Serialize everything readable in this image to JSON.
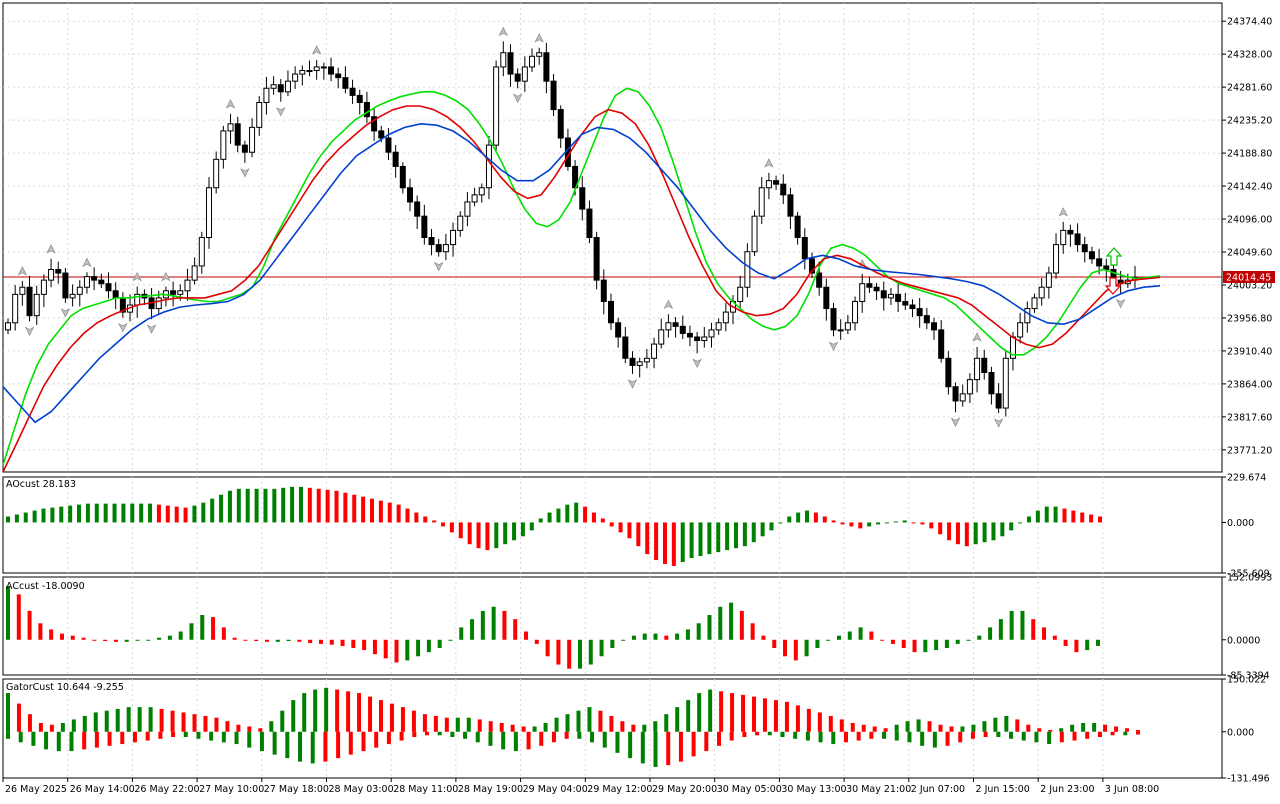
{
  "chart_data": [
    {
      "type": "candlestick",
      "panel": "main",
      "ylim": [
        23740,
        24400
      ],
      "yticks": [
        24374.4,
        24328.0,
        24281.6,
        24235.2,
        24188.8,
        24142.4,
        24096.0,
        24049.6,
        24003.2,
        23956.8,
        23910.4,
        23864.0,
        23817.6,
        23771.2
      ],
      "ytick_labels": [
        "24374.40",
        "24328.00",
        "24281.60",
        "24235.20",
        "24188.80",
        "24142.40",
        "24096.00",
        "24049.60",
        "24003.20",
        "23956.80",
        "23910.40",
        "23864.00",
        "23817.60",
        "23771.20"
      ],
      "current_price": 24014.45,
      "current_price_label": "24014.45",
      "xlabels": [
        "26 May 2025",
        "26 May 14:00",
        "26 May 22:00",
        "27 May 10:00",
        "27 May 18:00",
        "28 May 03:00",
        "28 May 11:00",
        "28 May 19:00",
        "29 May 04:00",
        "29 May 12:00",
        "29 May 20:00",
        "30 May 05:00",
        "30 May 13:00",
        "30 May 21:00",
        "2 Jun 07:00",
        "2 Jun 15:00",
        "2 Jun 23:00",
        "3 Jun 08:00"
      ],
      "candle_close_path": [
        23950,
        23990,
        24000,
        23960,
        23990,
        24010,
        24025,
        24020,
        23985,
        23990,
        24000,
        24015,
        24010,
        24005,
        23995,
        23985,
        23965,
        23975,
        23990,
        23985,
        23970,
        23985,
        23995,
        23990,
        23995,
        24010,
        24030,
        24070,
        24140,
        24180,
        24220,
        24230,
        24200,
        24190,
        24225,
        24260,
        24280,
        24285,
        24275,
        24290,
        24300,
        24305,
        24305,
        24310,
        24310,
        24300,
        24295,
        24280,
        24270,
        24260,
        24240,
        24220,
        24210,
        24190,
        24170,
        24140,
        24120,
        24100,
        24070,
        24060,
        24050,
        24060,
        24080,
        24100,
        24120,
        24130,
        24140,
        24200,
        24310,
        24330,
        24300,
        24290,
        24310,
        24325,
        24330,
        24290,
        24250,
        24210,
        24170,
        24140,
        24110,
        24070,
        24010,
        23980,
        23950,
        23930,
        23900,
        23890,
        23895,
        23900,
        23920,
        23940,
        23950,
        23945,
        23935,
        23930,
        23925,
        23930,
        23940,
        23950,
        23965,
        23980,
        24000,
        24050,
        24100,
        24140,
        24150,
        24145,
        24130,
        24100,
        24070,
        24040,
        24020,
        24000,
        23970,
        23940,
        23940,
        23950,
        23980,
        24005,
        24000,
        23995,
        23985,
        23990,
        23980,
        23975,
        23970,
        23960,
        23950,
        23940,
        23900,
        23860,
        23840,
        23850,
        23870,
        23900,
        23880,
        23850,
        23830,
        23900,
        23930,
        23950,
        23970,
        23985,
        24000,
        24020,
        24060,
        24080,
        24075,
        24060,
        24050,
        24040,
        24030,
        24025,
        24010,
        24005,
        24010,
        24014
      ],
      "ma_lines": [
        {
          "name": "green",
          "color": "#00e000",
          "values": [
            23750,
            23800,
            23850,
            23890,
            23920,
            23940,
            23960,
            23970,
            23975,
            23980,
            23985,
            23985,
            23987,
            23988,
            23990,
            23988,
            23985,
            23982,
            23980,
            23980,
            23985,
            23990,
            24000,
            24030,
            24070,
            24100,
            24130,
            24160,
            24185,
            24205,
            24220,
            24235,
            24245,
            24255,
            24262,
            24268,
            24272,
            24275,
            24275,
            24270,
            24262,
            24250,
            24230,
            24205,
            24175,
            24140,
            24110,
            24090,
            24085,
            24095,
            24120,
            24160,
            24200,
            24240,
            24270,
            24280,
            24275,
            24255,
            24225,
            24180,
            24130,
            24080,
            24035,
            24005,
            23985,
            23970,
            23955,
            23945,
            23940,
            23945,
            23960,
            23990,
            24030,
            24055,
            24060,
            24055,
            24045,
            24030,
            24015,
            24005,
            24000,
            23995,
            23990,
            23985,
            23975,
            23960,
            23945,
            23930,
            23915,
            23905,
            23905,
            23915,
            23930,
            23950,
            23975,
            24000,
            24020,
            24025,
            24020,
            24015,
            24012,
            24014,
            24016
          ]
        },
        {
          "name": "red",
          "color": "#e00000",
          "values": [
            23740,
            23780,
            23820,
            23860,
            23890,
            23915,
            23935,
            23950,
            23960,
            23968,
            23975,
            23978,
            23982,
            23985,
            23985,
            23985,
            23990,
            23995,
            24010,
            24030,
            24060,
            24090,
            24120,
            24150,
            24175,
            24195,
            24212,
            24228,
            24240,
            24250,
            24255,
            24255,
            24250,
            24240,
            24225,
            24205,
            24180,
            24155,
            24135,
            24125,
            24130,
            24155,
            24185,
            24215,
            24240,
            24250,
            24245,
            24230,
            24200,
            24160,
            24115,
            24070,
            24030,
            23995,
            23975,
            23965,
            23960,
            23962,
            23970,
            23990,
            24020,
            24040,
            24045,
            24040,
            24030,
            24020,
            24012,
            24005,
            24000,
            23995,
            23990,
            23985,
            23975,
            23960,
            23945,
            23930,
            23920,
            23915,
            23920,
            23935,
            23955,
            23975,
            23995,
            24005,
            24010,
            24012,
            24014
          ]
        },
        {
          "name": "blue",
          "color": "#0040d0",
          "values": [
            23860,
            23835,
            23810,
            23825,
            23850,
            23875,
            23900,
            23920,
            23940,
            23955,
            23965,
            23972,
            23975,
            23977,
            23980,
            23990,
            24010,
            24040,
            24070,
            24100,
            24130,
            24160,
            24185,
            24200,
            24215,
            24225,
            24230,
            24228,
            24220,
            24205,
            24185,
            24165,
            24150,
            24150,
            24165,
            24190,
            24215,
            24225,
            24222,
            24210,
            24190,
            24165,
            24140,
            24110,
            24080,
            24055,
            24035,
            24020,
            24012,
            24025,
            24040,
            24045,
            24040,
            24030,
            24025,
            24022,
            24020,
            24018,
            24015,
            24012,
            24008,
            24002,
            23990,
            23975,
            23960,
            23950,
            23948,
            23955,
            23970,
            23985,
            23995,
            24000,
            24002
          ]
        }
      ]
    },
    {
      "type": "bar",
      "panel": "AO",
      "label": "AOcust 28.183",
      "ylim": [
        -255.609,
        229.674
      ],
      "yticks": [
        229.674,
        0.0,
        -255.609
      ],
      "ytick_labels": [
        "229.674",
        "0.000",
        "-255.609"
      ],
      "values": [
        30,
        40,
        50,
        60,
        70,
        75,
        80,
        85,
        90,
        95,
        95,
        95,
        95,
        95,
        95,
        95,
        95,
        90,
        85,
        80,
        75,
        85,
        100,
        120,
        140,
        160,
        170,
        170,
        170,
        170,
        170,
        175,
        180,
        180,
        175,
        170,
        165,
        160,
        150,
        140,
        130,
        120,
        110,
        100,
        90,
        70,
        50,
        30,
        10,
        -20,
        -50,
        -80,
        -110,
        -130,
        -140,
        -130,
        -110,
        -90,
        -70,
        -40,
        20,
        50,
        70,
        90,
        100,
        80,
        50,
        20,
        -20,
        -50,
        -80,
        -120,
        -160,
        -190,
        -210,
        -220,
        -200,
        -180,
        -170,
        -160,
        -150,
        -140,
        -130,
        -120,
        -100,
        -70,
        -40,
        0,
        30,
        50,
        60,
        50,
        30,
        10,
        -10,
        -20,
        -30,
        -20,
        -10,
        0,
        5,
        10,
        0,
        -10,
        -30,
        -60,
        -90,
        -110,
        -120,
        -110,
        -100,
        -90,
        -70,
        -40,
        0,
        30,
        60,
        80,
        80,
        70,
        60,
        50,
        40,
        30
      ],
      "colors": {
        "up": "#008000",
        "down": "#ff0000"
      }
    },
    {
      "type": "bar",
      "panel": "AC",
      "label": "ACcust -18.0090",
      "ylim": [
        -85.3394,
        152.0993
      ],
      "yticks": [
        152.0993,
        0.0,
        -85.3394
      ],
      "ytick_labels": [
        "152.0993",
        "0.0000",
        "-85.3394"
      ],
      "values": [
        130,
        110,
        70,
        40,
        25,
        15,
        10,
        5,
        0,
        -3,
        -5,
        -5,
        -2,
        0,
        5,
        10,
        20,
        40,
        60,
        55,
        30,
        5,
        0,
        -3,
        -5,
        -5,
        -3,
        -5,
        -8,
        -10,
        -12,
        -15,
        -20,
        -25,
        -35,
        -45,
        -55,
        -50,
        -40,
        -30,
        -20,
        0,
        30,
        50,
        70,
        80,
        70,
        50,
        20,
        -10,
        -40,
        -60,
        -70,
        -70,
        -60,
        -40,
        -20,
        0,
        10,
        15,
        15,
        10,
        15,
        25,
        40,
        60,
        80,
        90,
        70,
        40,
        10,
        -20,
        -40,
        -50,
        -40,
        -20,
        0,
        10,
        20,
        30,
        20,
        0,
        -10,
        -20,
        -30,
        -30,
        -25,
        -20,
        -10,
        0,
        10,
        30,
        50,
        70,
        70,
        50,
        30,
        10,
        -15,
        -30,
        -25,
        -15
      ],
      "colors": {
        "up": "#008000",
        "down": "#ff0000"
      }
    },
    {
      "type": "bar",
      "panel": "Gator",
      "label": "GatorCust 10.644 -9.255",
      "ylim": [
        -131.496,
        150.022
      ],
      "yticks": [
        150.022,
        0.0,
        -131.496
      ],
      "ytick_labels": [
        "150.022",
        "0.000",
        "-131.496"
      ],
      "upper_values": [
        110,
        80,
        50,
        25,
        20,
        25,
        35,
        45,
        55,
        60,
        65,
        70,
        70,
        70,
        65,
        60,
        55,
        50,
        45,
        40,
        30,
        20,
        15,
        10,
        30,
        60,
        90,
        110,
        120,
        125,
        120,
        115,
        110,
        100,
        90,
        80,
        70,
        60,
        50,
        45,
        40,
        40,
        40,
        35,
        30,
        25,
        20,
        15,
        15,
        25,
        40,
        50,
        60,
        70,
        60,
        45,
        30,
        20,
        20,
        30,
        50,
        70,
        90,
        110,
        120,
        115,
        110,
        105,
        100,
        95,
        90,
        85,
        75,
        65,
        55,
        45,
        35,
        25,
        20,
        15,
        10,
        20,
        30,
        35,
        30,
        20,
        15,
        15,
        20,
        30,
        40,
        45,
        35,
        20,
        10,
        5,
        10,
        20,
        25,
        25,
        20,
        15,
        10,
        5
      ],
      "lower_values": [
        -20,
        -30,
        -40,
        -50,
        -55,
        -55,
        -50,
        -45,
        -40,
        -35,
        -30,
        -25,
        -20,
        -15,
        -15,
        -20,
        -25,
        -30,
        -35,
        -45,
        -55,
        -65,
        -75,
        -85,
        -90,
        -85,
        -75,
        -65,
        -55,
        -45,
        -35,
        -25,
        -15,
        -10,
        -10,
        -15,
        -20,
        -30,
        -40,
        -50,
        -55,
        -50,
        -40,
        -30,
        -20,
        -20,
        -30,
        -45,
        -60,
        -75,
        -90,
        -100,
        -95,
        -85,
        -70,
        -55,
        -40,
        -25,
        -15,
        -10,
        -10,
        -15,
        -20,
        -25,
        -30,
        -35,
        -30,
        -25,
        -20,
        -20,
        -25,
        -30,
        -40,
        -45,
        -40,
        -30,
        -20,
        -15,
        -15,
        -20,
        -25,
        -30,
        -35,
        -30,
        -25,
        -20,
        -15,
        -10,
        -10,
        -8
      ],
      "colors": {
        "up": "#008000",
        "down": "#ff0000"
      }
    }
  ]
}
